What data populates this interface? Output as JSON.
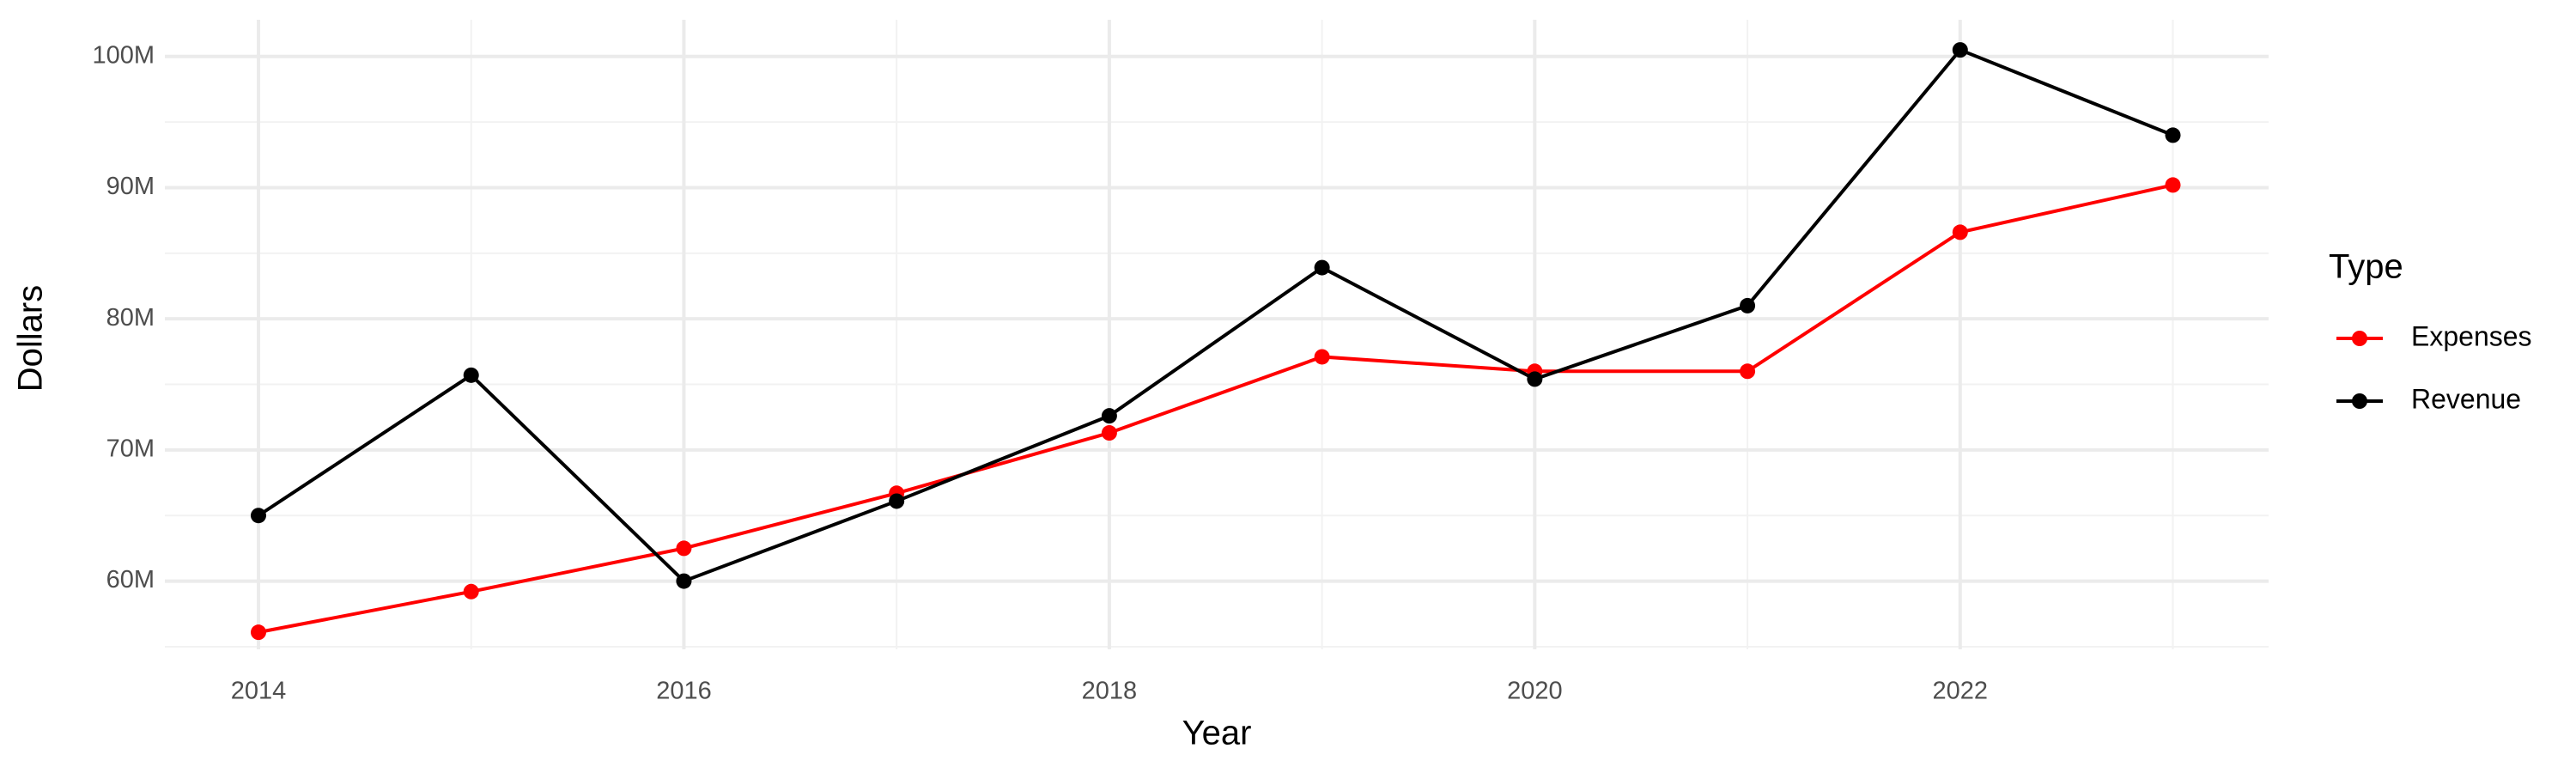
{
  "chart_data": {
    "type": "line",
    "x_label": "Year",
    "y_label": "Dollars",
    "legend_title": "Type",
    "x": [
      2014,
      2015,
      2016,
      2017,
      2018,
      2019,
      2020,
      2021,
      2022,
      2023
    ],
    "series": [
      {
        "name": "Expenses",
        "color": "#ff0000",
        "values": [
          56100000,
          59200000,
          62500000,
          66700000,
          71300000,
          77100000,
          76000000,
          76000000,
          86600000,
          90200000
        ]
      },
      {
        "name": "Revenue",
        "color": "#000000",
        "values": [
          65000000,
          75700000,
          60000000,
          66100000,
          72600000,
          83900000,
          75400000,
          81000000,
          100500000,
          94000000
        ]
      }
    ],
    "xlim": [
      2013.56,
      2023.45
    ],
    "xticks": [
      2014,
      2016,
      2018,
      2020,
      2022
    ],
    "ylim": [
      54800000,
      102800000
    ],
    "yticks": [
      {
        "value": 60000000,
        "label": "60M"
      },
      {
        "value": 70000000,
        "label": "70M"
      },
      {
        "value": 80000000,
        "label": "80M"
      },
      {
        "value": 90000000,
        "label": "90M"
      },
      {
        "value": 100000000,
        "label": "100M"
      }
    ],
    "grid": true,
    "legend": "right"
  }
}
